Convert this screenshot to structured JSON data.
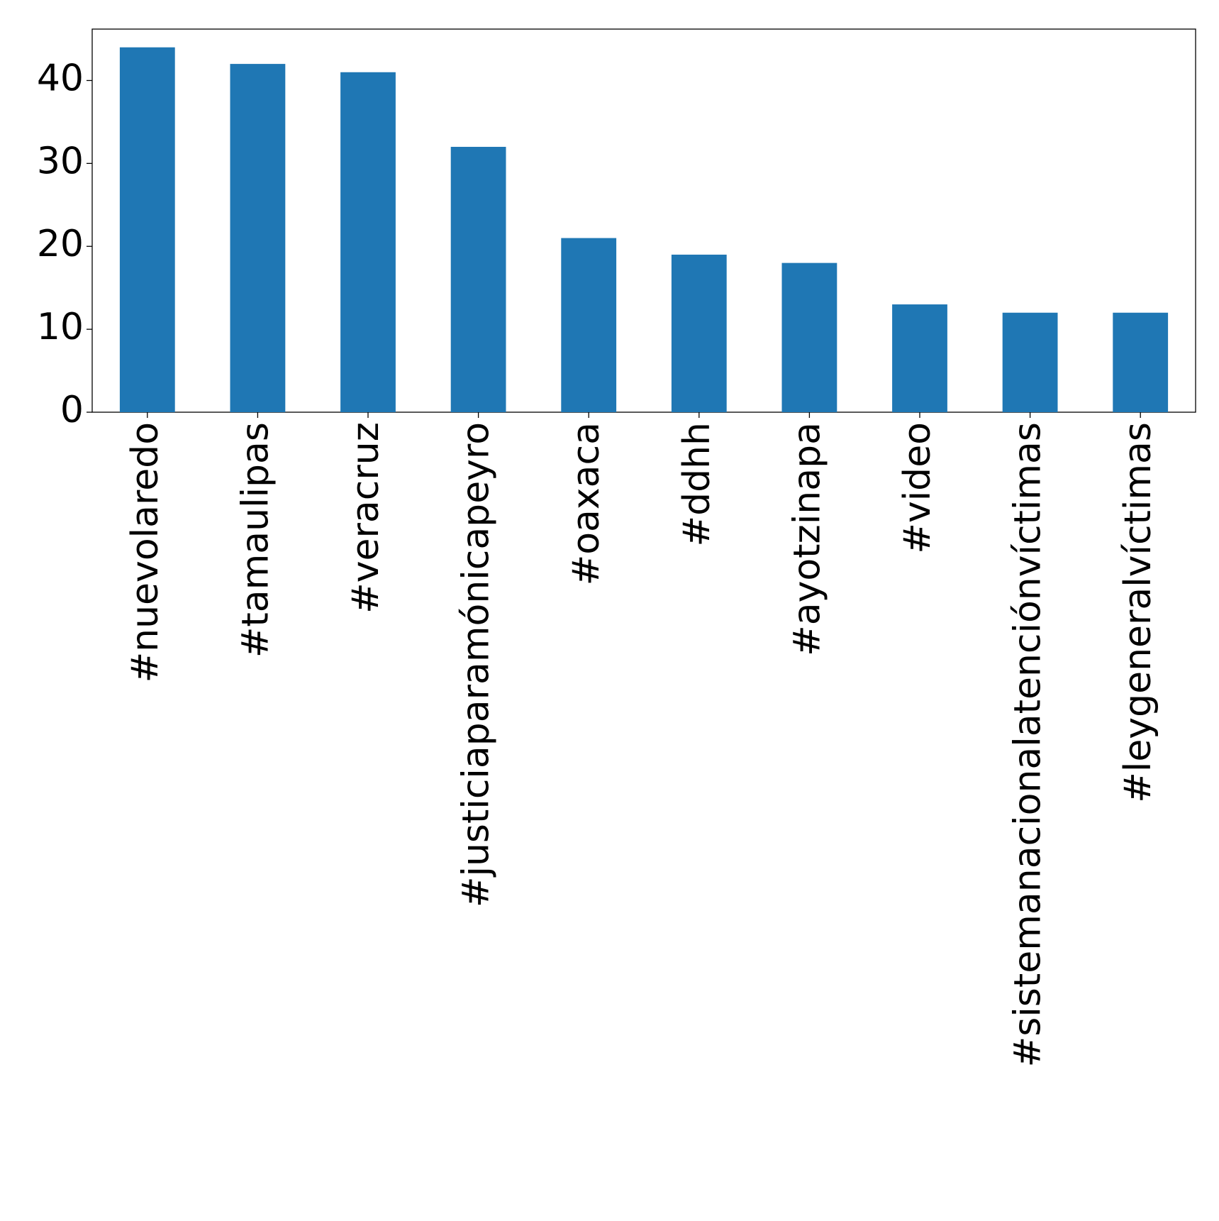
{
  "chart_data": {
    "type": "bar",
    "categories": [
      "#nuevolaredo",
      "#tamaulipas",
      "#veracruz",
      "#justiciaparamónicapeyro",
      "#oaxaca",
      "#ddhh",
      "#ayotzinapa",
      "#video",
      "#sistemanacionalatenciónvíctimas",
      "#leygeneralvíctimas"
    ],
    "values": [
      44,
      42,
      41,
      32,
      21,
      19,
      18,
      13,
      12,
      12
    ],
    "color": "#1f77b4",
    "ylim": [
      0,
      46.2
    ],
    "yticks": [
      0,
      10,
      20,
      30,
      40
    ],
    "grid": false
  }
}
